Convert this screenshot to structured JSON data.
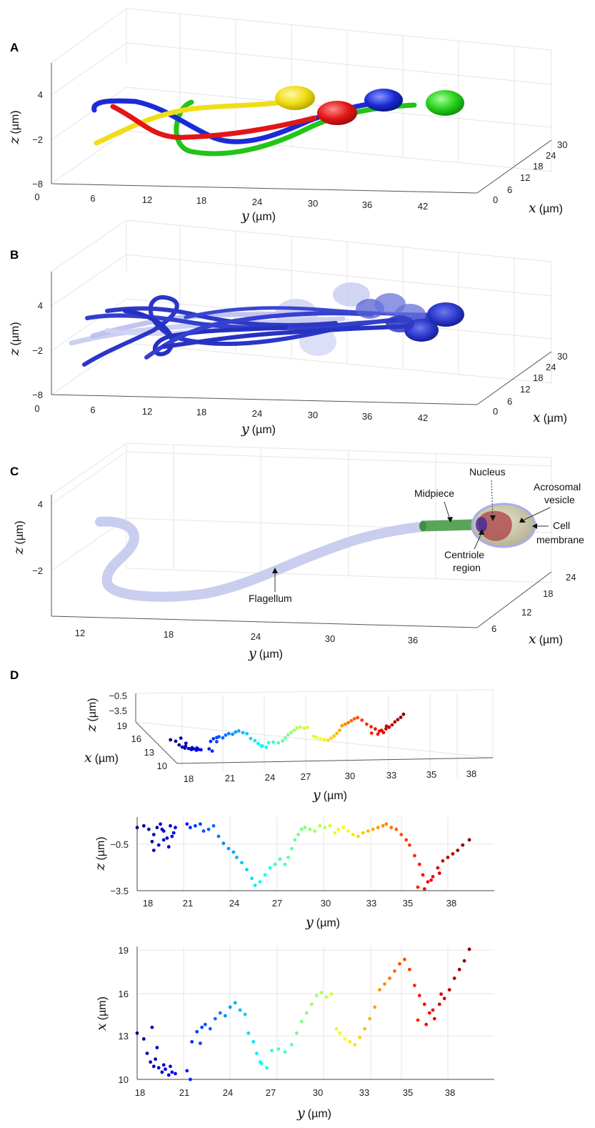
{
  "panels": [
    {
      "letter": "A",
      "axes": {
        "z_label": "z",
        "z_unit": "(µm)",
        "z_ticks": [
          "4",
          "−2",
          "−8"
        ],
        "y_label": "y",
        "y_unit": "(µm)",
        "y_ticks": [
          "0",
          "6",
          "12",
          "18",
          "24",
          "30",
          "36",
          "42"
        ],
        "x_label": "x",
        "x_unit": "(µm)",
        "x_ticks": [
          "0",
          "6",
          "12",
          "18",
          "24",
          "30"
        ]
      },
      "colors": [
        "#1a2bd6",
        "#e81e1e",
        "#f2e21c",
        "#27d81e"
      ]
    },
    {
      "letter": "B",
      "axes": {
        "z_label": "z",
        "z_unit": "(µm)",
        "z_ticks": [
          "4",
          "−2",
          "−8"
        ],
        "y_label": "y",
        "y_unit": "(µm)",
        "y_ticks": [
          "0",
          "6",
          "12",
          "18",
          "24",
          "30",
          "36",
          "42"
        ],
        "x_label": "x",
        "x_unit": "(µm)",
        "x_ticks": [
          "0",
          "6",
          "12",
          "18",
          "24",
          "30"
        ]
      },
      "colors": [
        "#2a36c8",
        "#9aa3e8"
      ]
    },
    {
      "letter": "C",
      "axes": {
        "z_label": "z",
        "z_unit": "(µm)",
        "z_ticks": [
          "4",
          "−2"
        ],
        "y_label": "y",
        "y_unit": "(µm)",
        "y_ticks": [
          "12",
          "18",
          "24",
          "30",
          "36"
        ],
        "x_label": "x",
        "x_unit": "(µm)",
        "x_ticks": [
          "6",
          "12",
          "18",
          "24"
        ]
      },
      "annotations": {
        "nucleus": "Nucleus",
        "acrosomal_1": "Acrosomal",
        "acrosomal_2": "vesicle",
        "midpiece": "Midpiece",
        "cell_1": "Cell",
        "cell_2": "membrane",
        "centriole_1": "Centriole",
        "centriole_2": "region",
        "flagellum": "Flagellum"
      },
      "colors": [
        "#c9cdee",
        "#5aa45a",
        "#b05050",
        "#c8c4a8"
      ]
    },
    {
      "letter": "D",
      "top": {
        "z_label": "z",
        "z_unit": "(µm)",
        "z_ticks": [
          "−0.5",
          "−3.5"
        ],
        "x_label": "x",
        "x_unit": "(µm)",
        "x_ticks": [
          "19",
          "16",
          "13",
          "10"
        ],
        "y_label": "y",
        "y_unit": "(µm)",
        "y_ticks": [
          "18",
          "21",
          "24",
          "27",
          "30",
          "33",
          "35",
          "38"
        ]
      },
      "middle": {
        "z_label": "z",
        "z_unit": "(µm)",
        "z_ticks": [
          "−0.5",
          "−3.5"
        ],
        "y_label": "y",
        "y_unit": "(µm)",
        "y_ticks": [
          "18",
          "21",
          "24",
          "27",
          "30",
          "33",
          "35",
          "38"
        ]
      },
      "bottom": {
        "x_label": "x",
        "x_unit": "(µm)",
        "x_ticks": [
          "19",
          "16",
          "13",
          "10"
        ],
        "y_label": "y",
        "y_unit": "(µm)",
        "y_ticks": [
          "18",
          "21",
          "24",
          "27",
          "30",
          "33",
          "35",
          "38"
        ]
      }
    }
  ],
  "chart_data": [
    {
      "type": "scatter",
      "xlabel": "y (µm)",
      "ylabel": "z (µm)",
      "xlim": [
        18,
        39.5
      ],
      "ylim": [
        -3.5,
        0.7
      ],
      "color_scale": "jet",
      "x": [
        18.0,
        18.4,
        18.7,
        19.0,
        19.2,
        19.4,
        19.6,
        19.8,
        20.0,
        20.2,
        19.0,
        19.3,
        19.6,
        19.9,
        20.1,
        18.9,
        19.5,
        20.3,
        21.0,
        21.2,
        21.5,
        21.8,
        22.0,
        22.3,
        22.6,
        22.9,
        23.2,
        23.5,
        23.8,
        24.0,
        24.3,
        24.6,
        24.9,
        25.1,
        25.4,
        25.7,
        26.0,
        26.3,
        26.6,
        26.9,
        27.1,
        27.3,
        27.5,
        27.7,
        27.9,
        28.1,
        28.4,
        28.7,
        29.0,
        29.3,
        29.6,
        29.9,
        30.1,
        30.4,
        30.7,
        31.0,
        31.3,
        31.6,
        31.9,
        32.2,
        32.5,
        32.8,
        33.0,
        33.3,
        33.6,
        33.9,
        34.2,
        34.4,
        34.7,
        35.0,
        35.2,
        35.5,
        35.8,
        36.1,
        36.4,
        36.7,
        37.0,
        37.3,
        37.6,
        38.0,
        34.9,
        35.3,
        35.7,
        36.2
      ],
      "y": [
        0.1,
        0.2,
        0.0,
        -0.3,
        0.1,
        0.3,
        -0.1,
        -0.5,
        0.2,
        -0.2,
        -1.2,
        -0.9,
        -0.6,
        -1.0,
        -0.4,
        -0.7,
        0.0,
        0.1,
        0.3,
        0.1,
        0.2,
        0.3,
        -0.1,
        0.0,
        0.2,
        -0.4,
        -0.8,
        -1.1,
        -1.3,
        -1.6,
        -1.9,
        -2.3,
        -2.8,
        -3.2,
        -3.0,
        -2.6,
        -2.2,
        -2.0,
        -1.7,
        -2.0,
        -1.6,
        -1.1,
        -0.6,
        -0.3,
        0.0,
        0.1,
        0.0,
        -0.1,
        0.2,
        0.1,
        0.2,
        -0.2,
        0.0,
        0.1,
        -0.1,
        -0.3,
        -0.4,
        -0.2,
        -0.1,
        0.0,
        0.1,
        0.2,
        0.3,
        0.1,
        0.0,
        -0.3,
        -0.6,
        -0.9,
        -1.5,
        -2.0,
        -2.6,
        -3.0,
        -2.7,
        -2.2,
        -1.8,
        -1.6,
        -1.4,
        -1.2,
        -0.9,
        -0.6,
        -3.3,
        -3.4,
        -2.9,
        -2.5
      ]
    },
    {
      "type": "scatter",
      "xlabel": "y (µm)",
      "ylabel": "x (µm)",
      "xlim": [
        18,
        39.5
      ],
      "ylim": [
        10,
        19.2
      ],
      "color_scale": "jet",
      "x": [
        18.0,
        18.4,
        18.6,
        18.8,
        19.0,
        19.1,
        19.3,
        19.5,
        19.7,
        19.9,
        20.1,
        20.3,
        18.9,
        19.2,
        19.6,
        20.0,
        21.0,
        21.3,
        21.6,
        21.9,
        22.1,
        22.4,
        22.7,
        23.0,
        23.3,
        23.6,
        23.9,
        24.2,
        24.5,
        24.7,
        25.0,
        25.2,
        25.5,
        25.8,
        26.1,
        26.5,
        26.9,
        27.3,
        27.6,
        27.9,
        28.2,
        28.5,
        28.8,
        29.1,
        29.4,
        29.7,
        30.0,
        30.2,
        30.5,
        30.8,
        31.1,
        31.4,
        31.7,
        32.0,
        32.3,
        32.6,
        32.9,
        33.2,
        33.5,
        33.8,
        34.1,
        34.4,
        34.7,
        35.0,
        35.3,
        35.6,
        35.9,
        36.2,
        36.5,
        36.8,
        37.1,
        37.4,
        37.7,
        38.0,
        34.9,
        35.4,
        35.8,
        36.3,
        21.2,
        21.8,
        25.4
      ],
      "y": [
        13.2,
        12.8,
        11.8,
        11.2,
        10.9,
        11.4,
        10.8,
        10.5,
        10.7,
        10.3,
        10.5,
        10.4,
        13.6,
        12.2,
        11.0,
        10.9,
        10.6,
        12.6,
        13.3,
        13.6,
        13.8,
        13.5,
        14.2,
        14.6,
        14.4,
        15.0,
        15.3,
        14.8,
        14.5,
        13.2,
        12.6,
        11.8,
        11.1,
        10.8,
        12.0,
        12.1,
        11.9,
        12.4,
        13.2,
        14.0,
        14.6,
        15.2,
        15.8,
        16.0,
        15.7,
        15.9,
        13.5,
        13.2,
        12.8,
        12.6,
        12.4,
        12.9,
        13.5,
        14.2,
        15.0,
        16.2,
        16.6,
        17.0,
        17.5,
        18.0,
        18.3,
        17.6,
        16.5,
        15.8,
        15.2,
        14.6,
        14.2,
        15.2,
        15.6,
        16.2,
        17.0,
        17.6,
        18.2,
        19.0,
        14.1,
        13.8,
        14.8,
        15.9,
        10.0,
        12.5,
        11.2
      ]
    }
  ]
}
